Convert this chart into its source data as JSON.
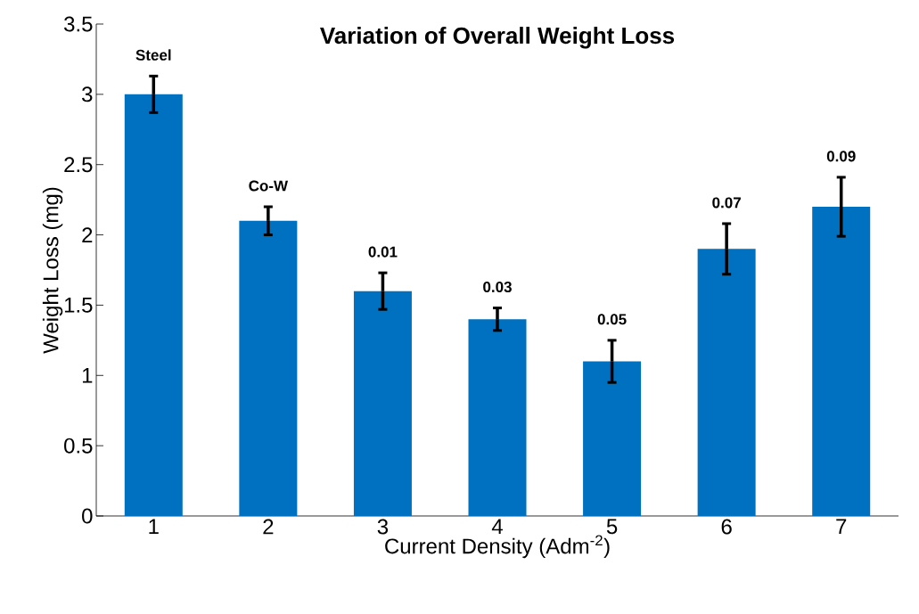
{
  "chart_data": {
    "type": "bar",
    "title": "Variation of Overall Weight Loss",
    "xlabel": "Current Density (Adm$^{-2}$)",
    "ylabel": "Weight Loss (mg)",
    "categories": [
      "1",
      "2",
      "3",
      "4",
      "5",
      "6",
      "7"
    ],
    "values": [
      3.0,
      2.1,
      1.6,
      1.4,
      1.1,
      1.9,
      2.2
    ],
    "errors": [
      0.13,
      0.1,
      0.13,
      0.08,
      0.15,
      0.18,
      0.21
    ],
    "color": "#0070c0",
    "ylim": [
      0,
      3.5
    ],
    "yticks": [
      0,
      0.5,
      1,
      1.5,
      2,
      2.5,
      3,
      3.5
    ],
    "grid": false,
    "annotations": [
      "Steel",
      "Co-W",
      "0.01",
      "0.03",
      "0.05",
      "0.07",
      "0.09"
    ]
  }
}
